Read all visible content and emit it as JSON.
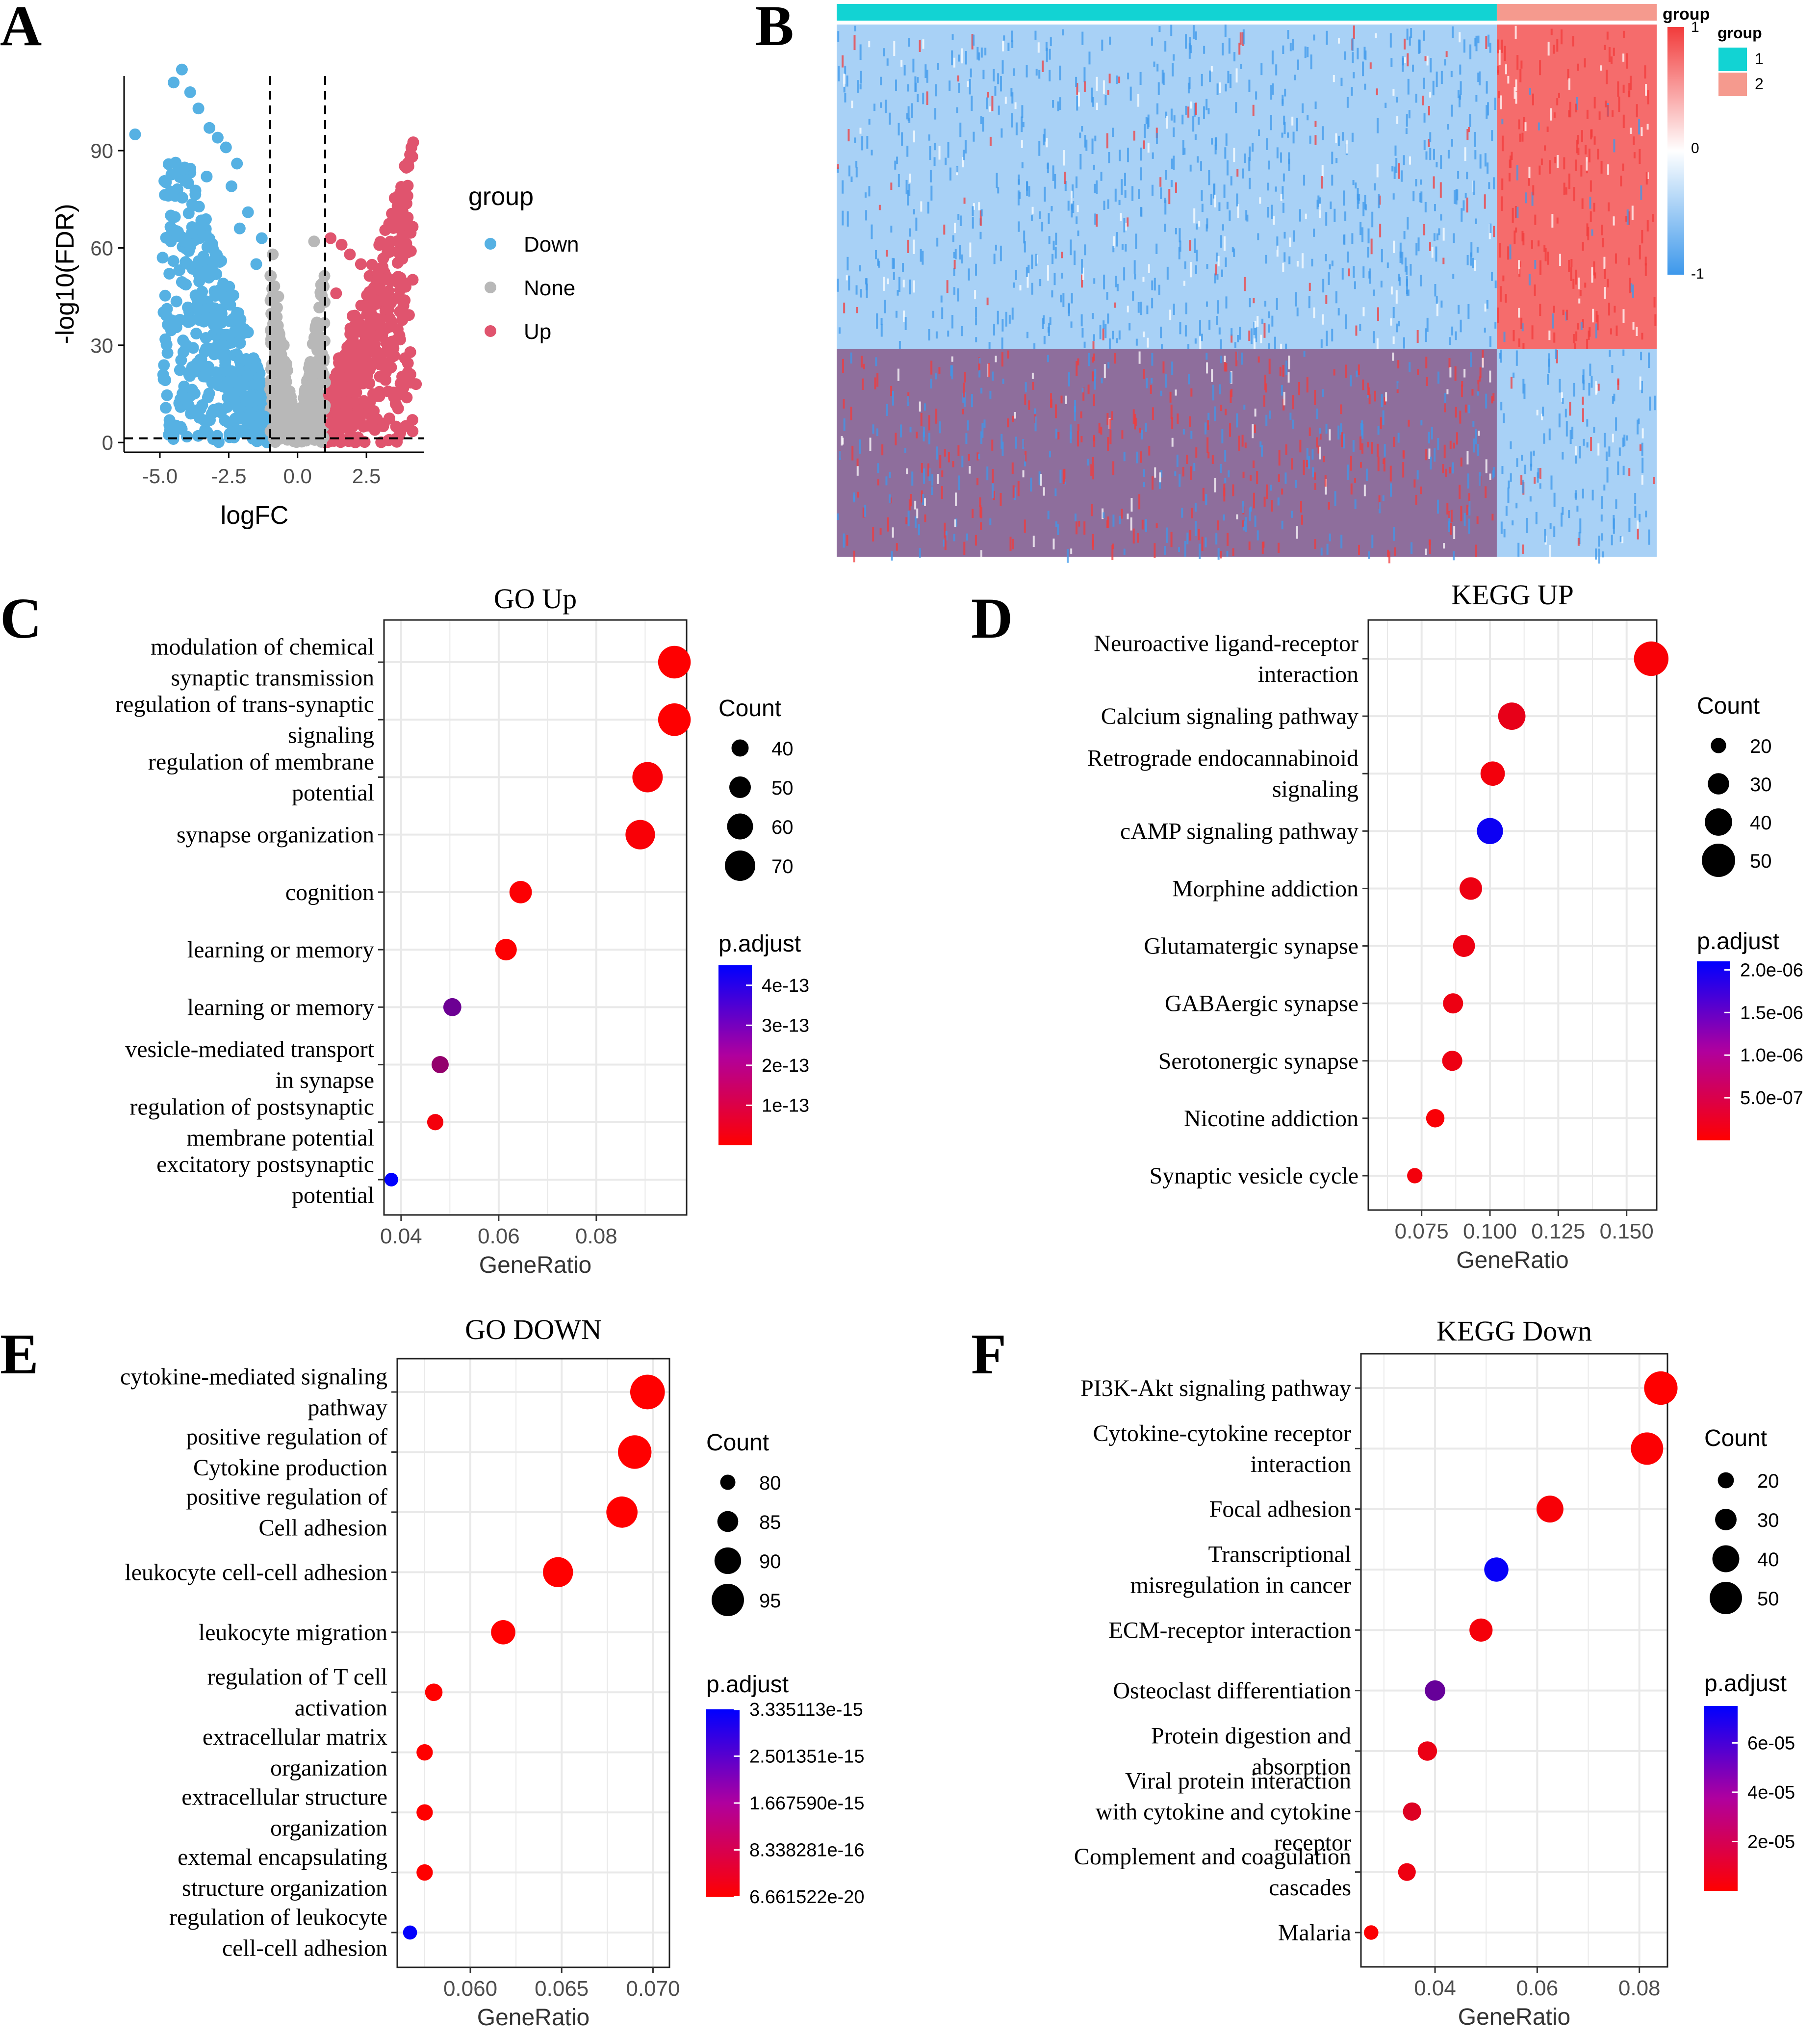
{
  "figure": {
    "panel_letters": [
      "A",
      "B",
      "C",
      "D",
      "E",
      "F"
    ]
  },
  "colors": {
    "down": "#56B1E3",
    "none": "#B8B8B8",
    "up": "#E0546E",
    "heat_high": "#F23B3B",
    "heat_mid": "#FFFFFF",
    "heat_low": "#3D98EB",
    "group1": "#12D3D3",
    "group2": "#F59A8E",
    "padj_low": "#FF0000",
    "padj_high": "#0000FF",
    "grid": "#E9E9E9"
  },
  "chart_data": [
    {
      "panel": "A",
      "type": "scatter",
      "subtype": "volcano",
      "xlabel": "logFC",
      "ylabel": "-log10(FDR)",
      "x_ticks": [
        -5.0,
        -2.5,
        0.0,
        2.5
      ],
      "x_tick_labels": [
        "-5.0",
        "-2.5",
        "0.0",
        "2.5"
      ],
      "y_ticks": [
        0,
        30,
        60,
        90
      ],
      "y_tick_labels": [
        "0",
        "30",
        "60",
        "90"
      ],
      "xlim": [
        -6.3,
        4.6
      ],
      "ylim": [
        -3,
        113
      ],
      "thresholds": {
        "logFC": [
          -1,
          1
        ],
        "neg_log10_fdr": 1.3
      },
      "legend": {
        "title": "group",
        "entries": [
          "Down",
          "None",
          "Up"
        ]
      },
      "series": [
        {
          "name": "Down",
          "points": [
            [
              -5.9,
              95
            ],
            [
              -4.2,
              115
            ],
            [
              -4.5,
              111
            ],
            [
              -3.9,
              108
            ],
            [
              -3.6,
              103
            ],
            [
              -3.2,
              97
            ],
            [
              -2.9,
              94
            ],
            [
              -2.6,
              91
            ],
            [
              -2.2,
              86
            ],
            [
              -4.9,
              57
            ],
            [
              -4.6,
              62
            ],
            [
              -3.8,
              73
            ],
            [
              -3.3,
              82
            ],
            [
              -2.4,
              79
            ],
            [
              -1.8,
              71
            ],
            [
              -2.1,
              66
            ],
            [
              -3.1,
              53
            ],
            [
              -2.7,
              49
            ],
            [
              -1.5,
              55
            ],
            [
              -1.3,
              63
            ],
            [
              -2.2,
              40
            ],
            [
              -1.8,
              34
            ],
            [
              -1.6,
              26
            ],
            [
              -1.4,
              18
            ],
            [
              -1.2,
              8
            ],
            [
              -3.6,
              41
            ],
            [
              -2.9,
              30
            ],
            [
              -2.4,
              22
            ],
            [
              -1.9,
              14
            ]
          ]
        },
        {
          "name": "None",
          "points": [
            [
              -0.9,
              58
            ],
            [
              -0.7,
              45
            ],
            [
              -0.5,
              30
            ],
            [
              -0.3,
              15
            ],
            [
              -0.1,
              5
            ],
            [
              0.1,
              3
            ],
            [
              0.3,
              12
            ],
            [
              0.5,
              24
            ],
            [
              0.7,
              37
            ],
            [
              0.9,
              49
            ],
            [
              0.6,
              62
            ],
            [
              -0.8,
              24
            ],
            [
              -0.4,
              8
            ],
            [
              0.2,
              2
            ],
            [
              0.8,
              18
            ]
          ]
        },
        {
          "name": "Up",
          "points": [
            [
              1.2,
              63
            ],
            [
              1.6,
              61
            ],
            [
              1.9,
              58
            ],
            [
              2.3,
              55
            ],
            [
              2.8,
              48
            ],
            [
              3.3,
              41
            ],
            [
              3.7,
              33
            ],
            [
              3.9,
              26
            ],
            [
              4.1,
              21
            ],
            [
              4.3,
              18
            ],
            [
              1.4,
              46
            ],
            [
              2.0,
              39
            ],
            [
              2.5,
              30
            ],
            [
              3.0,
              24
            ],
            [
              1.5,
              26
            ],
            [
              1.8,
              17
            ],
            [
              2.2,
              10
            ],
            [
              1.2,
              6
            ],
            [
              3.5,
              14
            ],
            [
              2.7,
              36
            ]
          ]
        }
      ]
    },
    {
      "panel": "B",
      "type": "heatmap",
      "scale_title": "group",
      "scale_ticks": [
        1,
        0,
        -1
      ],
      "scale_tick_labels": [
        "1",
        "0",
        "-1"
      ],
      "legend": {
        "title": "group",
        "entries": [
          "1",
          "2"
        ]
      },
      "group_split_fraction": 0.805,
      "row_split_fraction": 0.61,
      "blocks": [
        {
          "columns": "group1",
          "rows": "upper",
          "pattern": "low"
        },
        {
          "columns": "group2",
          "rows": "upper",
          "pattern": "high"
        },
        {
          "columns": "group1",
          "rows": "lower",
          "pattern": "mixed"
        },
        {
          "columns": "group2",
          "rows": "lower",
          "pattern": "low"
        }
      ]
    },
    {
      "panel": "C",
      "type": "scatter",
      "subtype": "dotplot",
      "title": "GO Up",
      "xlabel": "GeneRatio",
      "x_ticks": [
        0.04,
        0.06,
        0.08
      ],
      "x_tick_labels": [
        "0.04",
        "0.06",
        "0.08"
      ],
      "xlim": [
        0.0365,
        0.0985
      ],
      "categories": [
        [
          "modulation of chemical",
          "synaptic transmission"
        ],
        [
          "regulation of trans-synaptic",
          "signaling"
        ],
        [
          "regulation of membrane",
          "potential"
        ],
        [
          "synapse organization"
        ],
        [
          "cognition"
        ],
        [
          "learning or memory"
        ],
        [
          "learning or memory"
        ],
        [
          "vesicle-mediated transport",
          "in synapse"
        ],
        [
          "regulation of postsynaptic",
          "membrane potential"
        ],
        [
          "excitatory postsynaptic",
          "potential"
        ]
      ],
      "gene_ratio": [
        0.096,
        0.096,
        0.0905,
        0.089,
        0.0645,
        0.0615,
        0.0505,
        0.048,
        0.047,
        0.038
      ],
      "count": [
        75,
        75,
        70,
        68,
        52,
        50,
        42,
        40,
        38,
        32
      ],
      "p_adjust": [
        1e-15,
        1e-15,
        1e-14,
        1e-14,
        5e-15,
        3e-15,
        2.6e-13,
        1.9e-13,
        2e-14,
        4.5e-13
      ],
      "size_legend": {
        "title": "Count",
        "values": [
          40,
          50,
          60,
          70
        ],
        "labels": [
          "40",
          "50",
          "60",
          "70"
        ]
      },
      "color_legend": {
        "title": "p.adjust",
        "min": 0,
        "max": 4.5e-13,
        "ticks": [
          1e-13,
          2e-13,
          3e-13,
          4e-13
        ],
        "tick_labels": [
          "1e-13",
          "2e-13",
          "3e-13",
          "4e-13"
        ]
      }
    },
    {
      "panel": "D",
      "type": "scatter",
      "subtype": "dotplot",
      "title": "KEGG UP",
      "xlabel": "GeneRatio",
      "x_ticks": [
        0.075,
        0.1,
        0.125,
        0.15
      ],
      "x_tick_labels": [
        "0.075",
        "0.100",
        "0.125",
        "0.150"
      ],
      "xlim": [
        0.0555,
        0.161
      ],
      "categories": [
        [
          "Neuroactive ligand-receptor",
          "interaction"
        ],
        [
          "Calcium signaling pathway"
        ],
        [
          "Retrograde endocannabinoid",
          "signaling"
        ],
        [
          "cAMP signaling pathway"
        ],
        [
          "Morphine addiction"
        ],
        [
          "Glutamatergic synapse"
        ],
        [
          "GABAergic synapse"
        ],
        [
          "Serotonergic synapse"
        ],
        [
          "Nicotine addiction"
        ],
        [
          "Synaptic vesicle cycle"
        ]
      ],
      "gene_ratio": [
        0.159,
        0.108,
        0.101,
        0.1,
        0.093,
        0.0905,
        0.0865,
        0.0862,
        0.08,
        0.0725
      ],
      "count": [
        52,
        40,
        35,
        38,
        32,
        31,
        28,
        28,
        25,
        20
      ],
      "p_adjust": [
        5e-08,
        2e-07,
        1e-07,
        2e-06,
        1.5e-07,
        1.5e-07,
        1.5e-07,
        1.5e-07,
        5e-08,
        1e-07
      ],
      "size_legend": {
        "title": "Count",
        "values": [
          20,
          30,
          40,
          50
        ],
        "labels": [
          "20",
          "30",
          "40",
          "50"
        ]
      },
      "color_legend": {
        "title": "p.adjust",
        "min": 0,
        "max": 2.1e-06,
        "ticks": [
          5e-07,
          1e-06,
          1.5e-06,
          2e-06
        ],
        "tick_labels": [
          "5.0e-07",
          "1.0e-06",
          "1.5e-06",
          "2.0e-06"
        ]
      }
    },
    {
      "panel": "E",
      "type": "scatter",
      "subtype": "dotplot",
      "title": "GO DOWN",
      "xlabel": "GeneRatio",
      "x_ticks": [
        0.06,
        0.065,
        0.07
      ],
      "x_tick_labels": [
        "0.060",
        "0.065",
        "0.070"
      ],
      "xlim": [
        0.056,
        0.0709
      ],
      "categories": [
        [
          "cytokine-mediated signaling",
          "pathway"
        ],
        [
          "positive regulation of",
          "Cytokine production"
        ],
        [
          "positive regulation of",
          "Cell adhesion"
        ],
        [
          "leukocyte cell-cell adhesion"
        ],
        [
          "leukocyte migration"
        ],
        [
          "regulation of T cell",
          "activation"
        ],
        [
          "extracellular matrix",
          "organization"
        ],
        [
          "extracellular structure",
          "organization"
        ],
        [
          "extemal encapsulating",
          "structure organization"
        ],
        [
          "regulation of leukocyte",
          "cell-cell adhesion"
        ]
      ],
      "gene_ratio": [
        0.0697,
        0.069,
        0.0683,
        0.0648,
        0.0618,
        0.058,
        0.0575,
        0.0575,
        0.0575,
        0.0567
      ],
      "count": [
        97,
        96,
        94,
        93,
        88,
        82,
        81,
        81,
        81,
        79
      ],
      "p_adjust": [
        1e-19,
        1e-19,
        1e-19,
        1e-19,
        1e-19,
        1e-19,
        1e-19,
        1e-19,
        1e-19,
        3.3e-15
      ],
      "size_legend": {
        "title": "Count",
        "values": [
          80,
          85,
          90,
          95
        ],
        "labels": [
          "80",
          "85",
          "90",
          "95"
        ]
      },
      "color_legend": {
        "title": "p.adjust",
        "min": 6.661522e-20,
        "max": 3.335113e-15,
        "ticks": [
          6.661522e-20,
          8.338281e-16,
          1.66759e-15,
          2.501351e-15,
          3.335113e-15
        ],
        "tick_labels": [
          "6.661522e-20",
          "8.338281e-16",
          "1.667590e-15",
          "2.501351e-15",
          "3.335113e-15"
        ]
      }
    },
    {
      "panel": "F",
      "type": "scatter",
      "subtype": "dotplot",
      "title": "KEGG Down",
      "xlabel": "GeneRatio",
      "x_ticks": [
        0.04,
        0.06,
        0.08
      ],
      "x_tick_labels": [
        "0.04",
        "0.06",
        "0.08"
      ],
      "xlim": [
        0.0255,
        0.0855
      ],
      "categories": [
        [
          "PI3K-Akt signaling pathway"
        ],
        [
          "Cytokine-cytokine receptor",
          "interaction"
        ],
        [
          "Focal adhesion"
        ],
        [
          "Transcriptional",
          "misregulation in cancer"
        ],
        [
          "ECM-receptor interaction"
        ],
        [
          "Osteoclast differentiation"
        ],
        [
          "Protein digestion and",
          "absorption"
        ],
        [
          "Viral protein interaction",
          "with cytokine and cytokine",
          "receptor"
        ],
        [
          "Complement and coagulation",
          "cascades"
        ],
        [
          "Malaria"
        ]
      ],
      "gene_ratio": [
        0.0842,
        0.0815,
        0.0625,
        0.052,
        0.049,
        0.04,
        0.0385,
        0.0355,
        0.0345,
        0.0275
      ],
      "count": [
        52,
        50,
        40,
        35,
        33,
        28,
        26,
        24,
        23,
        17
      ],
      "p_adjust": [
        1e-07,
        1e-06,
        2e-06,
        7.3e-05,
        3e-06,
        4.5e-05,
        6e-06,
        1e-05,
        5e-06,
        1e-06
      ],
      "size_legend": {
        "title": "Count",
        "values": [
          20,
          30,
          40,
          50
        ],
        "labels": [
          "20",
          "30",
          "40",
          "50"
        ]
      },
      "color_legend": {
        "title": "p.adjust",
        "min": 0,
        "max": 7.5e-05,
        "ticks": [
          2e-05,
          4e-05,
          6e-05
        ],
        "tick_labels": [
          "2e-05",
          "4e-05",
          "6e-05"
        ]
      }
    }
  ]
}
